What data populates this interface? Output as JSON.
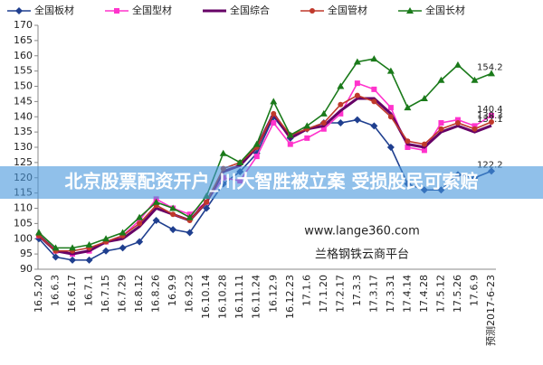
{
  "chart_data": {
    "type": "line",
    "legend": "top",
    "categories": [
      "16.5.20",
      "16.6.3",
      "16.6.17",
      "16.7.1",
      "16.7.15",
      "16.7.29",
      "16.8.12",
      "16.8.26",
      "16.9.9",
      "16.9.23",
      "16.10.14",
      "16.10.28",
      "16.11.11",
      "16.11.24",
      "16.12.9",
      "16.12.23",
      "17.1.6",
      "17.1.20",
      "17.2.17",
      "17.3.3",
      "17.3.17",
      "17.3.31",
      "17.4.14",
      "17.4.28",
      "17.5.12",
      "17.5.26",
      "17.6.9",
      "预测2017-6-23"
    ],
    "series": [
      {
        "name": "全国板材",
        "color": "#1f3f8f",
        "marker": "diamond",
        "values": [
          100,
          94,
          93,
          93,
          96,
          97,
          99,
          106,
          103,
          102,
          110,
          118,
          122,
          128,
          140,
          133,
          136,
          138,
          138,
          139,
          137,
          130,
          118,
          116,
          116,
          121,
          120,
          122.2
        ]
      },
      {
        "name": "全国型材",
        "color": "#ff33cc",
        "marker": "square",
        "values": [
          101,
          96,
          95,
          96,
          99,
          101,
          106,
          113,
          110,
          108,
          112,
          120,
          119,
          127,
          138,
          131,
          133,
          136,
          141,
          151,
          149,
          143,
          130,
          129,
          138,
          139,
          137,
          140.4
        ]
      },
      {
        "name": "全国综合",
        "color": "#660066",
        "marker": "none",
        "values": [
          101,
          96,
          95,
          96,
          99,
          100,
          104,
          110,
          108,
          106,
          112,
          122,
          124,
          130,
          141,
          133,
          136,
          137,
          142,
          146,
          146,
          141,
          131,
          130,
          135,
          137,
          135,
          137.1
        ]
      },
      {
        "name": "全国管材",
        "color": "#c0392b",
        "marker": "circle",
        "values": [
          101,
          96,
          96,
          97,
          99,
          101,
          105,
          111,
          108,
          106,
          112,
          123,
          125,
          130,
          141,
          134,
          136,
          138,
          144,
          147,
          145,
          140,
          132,
          131,
          136,
          138,
          136,
          138.3
        ]
      },
      {
        "name": "全国长材",
        "color": "#1a7a1a",
        "marker": "triangle",
        "values": [
          102,
          97,
          97,
          98,
          100,
          102,
          107,
          112,
          110,
          107,
          114,
          128,
          125,
          131,
          145,
          134,
          137,
          141,
          150,
          158,
          159,
          155,
          143,
          146,
          152,
          157,
          152,
          154.2
        ]
      }
    ],
    "ylim": [
      90,
      170
    ],
    "yticks": [
      90,
      95,
      100,
      105,
      110,
      115,
      120,
      125,
      130,
      135,
      140,
      145,
      150,
      155,
      160,
      165,
      170
    ],
    "banner": "北京股票配资开户_川大智胜被立案 受损股民可索赔",
    "watermark": [
      "www.lange360.com",
      "兰格钢铁云商平台"
    ]
  }
}
